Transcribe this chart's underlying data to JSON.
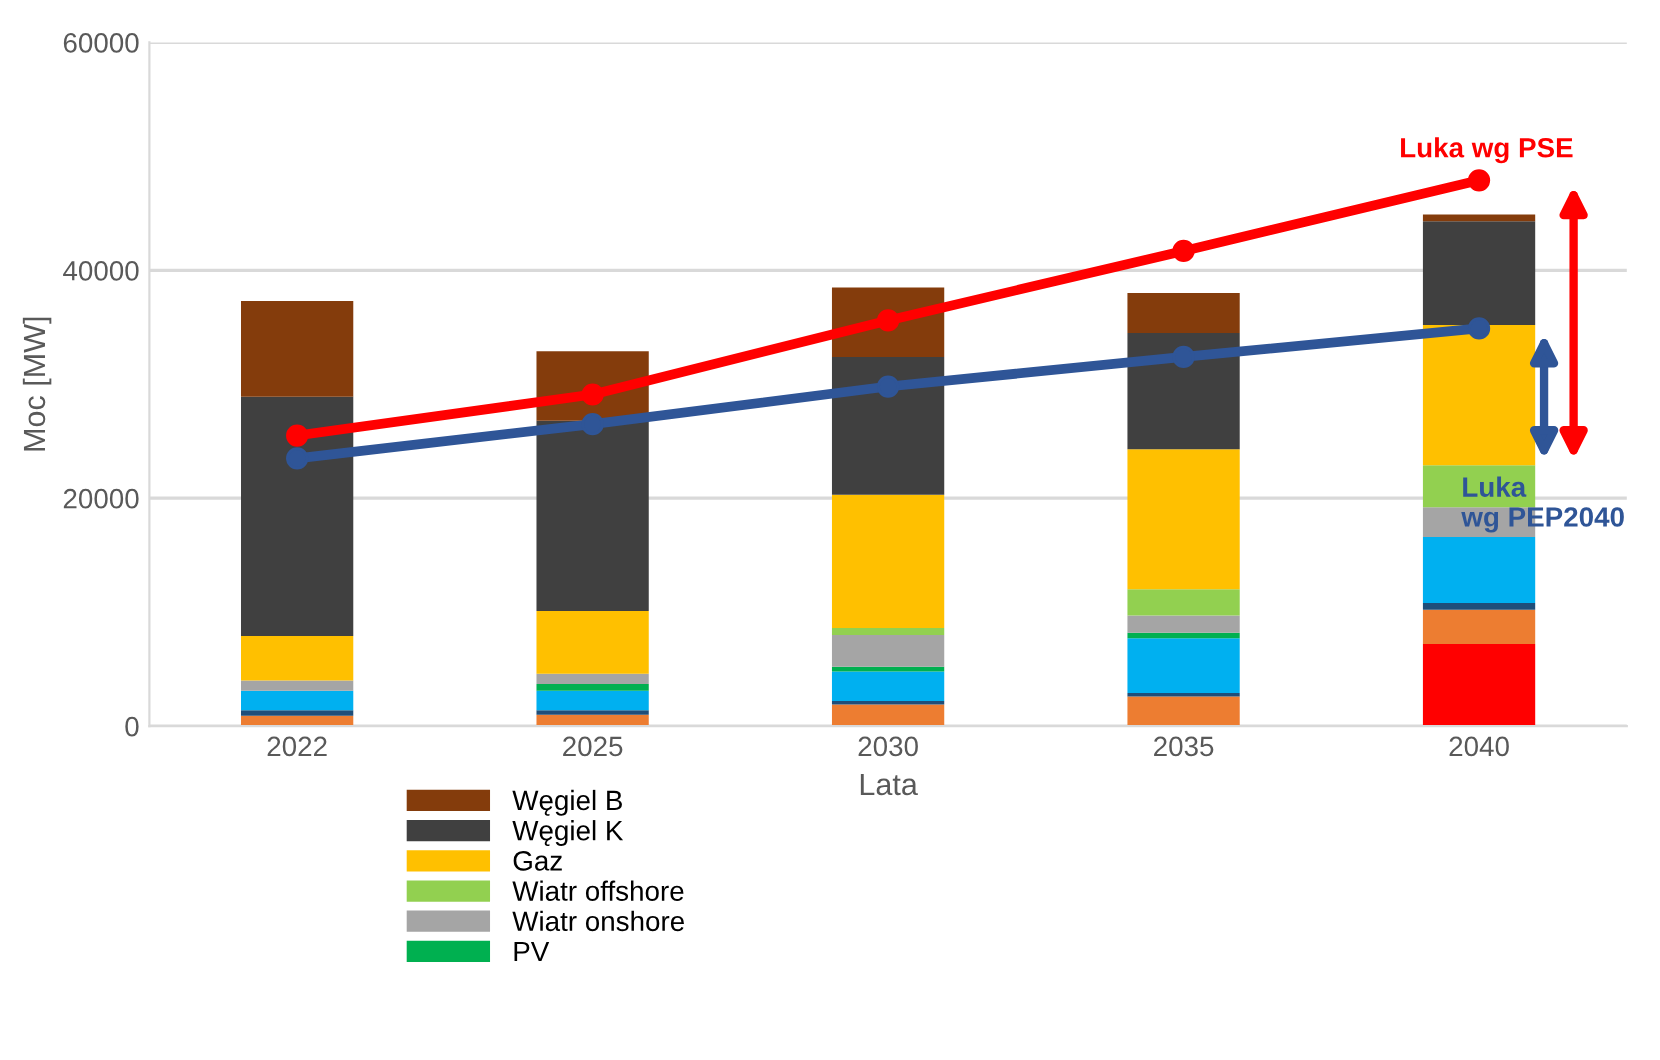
{
  "chart_data": {
    "type": "bar",
    "stacked": true,
    "categories": [
      "2022",
      "2025",
      "2030",
      "2035",
      "2040"
    ],
    "xlabel": "Lata",
    "ylabel": "Moc [MW]",
    "ylim": [
      0,
      60000
    ],
    "yticks": [
      0,
      20000,
      40000,
      60000
    ],
    "grid": "y",
    "legend": "bottom",
    "series": [
      {
        "color": "#ff0000",
        "values": [
          null,
          null,
          null,
          null,
          7200
        ]
      },
      {
        "color": "#ed7d31",
        "values": [
          900,
          1000,
          1900,
          2600,
          3000
        ]
      },
      {
        "color": "#1f4e79",
        "values": [
          500,
          400,
          300,
          300,
          600
        ]
      },
      {
        "color": "#00b0f0",
        "values": [
          1700,
          1700,
          2600,
          4800,
          5800
        ]
      },
      {
        "name": "PV",
        "color": "#00b050",
        "values": [
          null,
          600,
          400,
          500,
          null
        ]
      },
      {
        "name": "Wiatr onshore",
        "color": "#a5a5a5",
        "values": [
          900,
          900,
          2800,
          1500,
          2600
        ]
      },
      {
        "name": "Wiatr offshore",
        "color": "#92d050",
        "values": [
          null,
          null,
          600,
          2300,
          3700
        ]
      },
      {
        "name": "Gaz",
        "color": "#ffc000",
        "values": [
          3900,
          5500,
          11700,
          12300,
          12300
        ]
      },
      {
        "name": "Węgiel K",
        "color": "#404040",
        "values": [
          21000,
          16700,
          12100,
          10200,
          9100
        ]
      },
      {
        "name": "Węgiel B",
        "color": "#843c0c",
        "values": [
          8400,
          6100,
          6100,
          3500,
          600
        ]
      },
      {
        "type": "line",
        "color": "#ff0000",
        "marker": "circle",
        "values": [
          25500,
          29100,
          35600,
          41700,
          47900
        ]
      },
      {
        "type": "line",
        "color": "#2f5597",
        "marker": "circle",
        "values": [
          23500,
          26500,
          29800,
          32400,
          34900
        ]
      }
    ],
    "annotations": [
      "Luka wg PSE",
      "Luka\nwg PEP2040"
    ]
  }
}
